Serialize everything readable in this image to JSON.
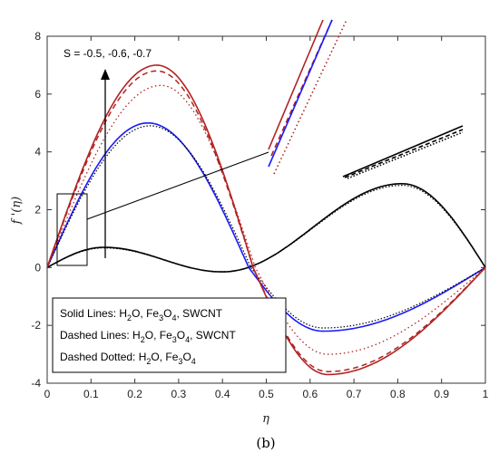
{
  "chart_data": {
    "type": "line",
    "xlabel": "η",
    "ylabel": "f '(η)",
    "xlim": [
      0,
      1
    ],
    "ylim": [
      -4,
      8
    ],
    "xticks": [
      "0",
      "0.1",
      "0.2",
      "0.3",
      "0.4",
      "0.5",
      "0.6",
      "0.7",
      "0.8",
      "0.9",
      "1"
    ],
    "yticks": [
      "-4",
      "-2",
      "0",
      "2",
      "4",
      "6",
      "8"
    ],
    "annotation": "S = -0.5, -0.6, -0.7",
    "caption": "(b)",
    "legend": [
      {
        "prefix": "Solid Lines: H",
        "sub1": "2",
        "mid": "O, Fe",
        "sub2": "3",
        "mid2": "O",
        "sub3": "4",
        "suffix": ", SWCNT"
      },
      {
        "prefix": "Dashed Lines: H",
        "sub1": "2",
        "mid": "O, Fe",
        "sub2": "3",
        "mid2": "O",
        "sub3": "4",
        "suffix": ", SWCNT"
      },
      {
        "prefix": "Dashed Dotted: H",
        "sub1": "2",
        "mid": "O, Fe",
        "sub2": "3",
        "mid2": "O",
        "sub3": "4",
        "suffix": ""
      }
    ],
    "colors": {
      "black": "#000000",
      "blue": "#1a1aff",
      "red": "#b22222"
    },
    "curves": [
      {
        "group": "S=-0.5",
        "color": "black",
        "peak1": 0.7,
        "peak2": 2.9,
        "trough": -0.15
      },
      {
        "group": "S=-0.6",
        "color": "blue",
        "peak1": 5.0,
        "trough": -2.2
      },
      {
        "group": "S=-0.7",
        "color": "red",
        "peak1_solid": 7.0,
        "peak1_dashed": 6.8,
        "peak1_dotted": 6.3,
        "trough_solid": -3.7,
        "trough_dashed": -3.6,
        "trough_dotted": -3.0
      }
    ]
  }
}
